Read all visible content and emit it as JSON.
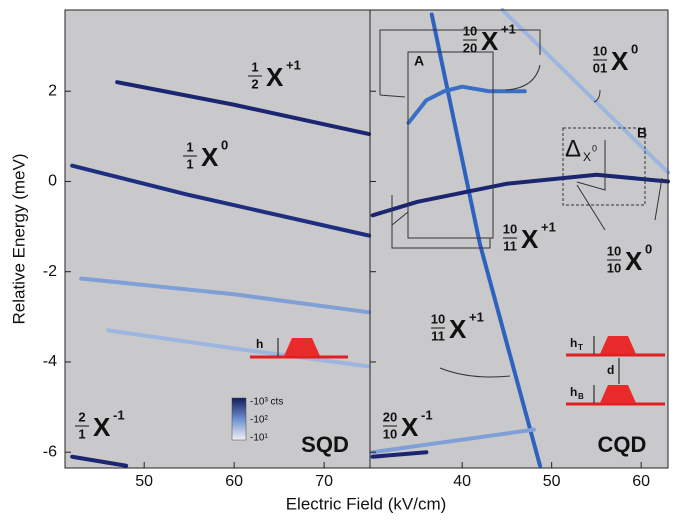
{
  "chart_data": [
    {
      "type": "line",
      "panel_label": "SQD",
      "xlabel": "Electric Field (kV/cm)",
      "ylabel": "Relative Energy (meV)",
      "xlim": [
        41.2,
        75.1
      ],
      "xticks": [
        50,
        60,
        70
      ],
      "ylim": [
        -6.35,
        3.8
      ],
      "yticks": [
        -6,
        -4,
        -2,
        0,
        2
      ],
      "series": [
        {
          "color": "#1b2570",
          "x": [
            47,
            60,
            75
          ],
          "values": [
            2.2,
            1.7,
            1.05
          ]
        },
        {
          "color": "#1f2f80",
          "x": [
            42,
            55,
            75
          ],
          "values": [
            0.35,
            -0.3,
            -1.2
          ]
        },
        {
          "color": "#7f9fd6",
          "x": [
            43,
            60,
            75
          ],
          "values": [
            -2.15,
            -2.5,
            -2.9
          ]
        },
        {
          "color": "#9db6e0",
          "x": [
            46,
            60,
            75
          ],
          "values": [
            -3.3,
            -3.7,
            -4.1
          ]
        },
        {
          "color": "#1b2570",
          "x": [
            42,
            48
          ],
          "values": [
            -6.1,
            -6.3
          ]
        }
      ],
      "annotations": [
        {
          "top": "1",
          "bottom": "2",
          "text": "X",
          "sup": "+1"
        },
        {
          "top": "1",
          "bottom": "1",
          "text": "X",
          "sup": "0"
        },
        {
          "top": "2",
          "bottom": "1",
          "text": "X",
          "sup": "-1"
        }
      ],
      "colorbar": [
        "-10³ cts",
        "-10²",
        "-10¹"
      ],
      "inset_labels": [
        "h"
      ]
    },
    {
      "type": "line",
      "panel_label": "CQD",
      "xlim": [
        29.7,
        63.0
      ],
      "xticks": [
        40,
        50,
        60
      ],
      "ylim": [
        -6.35,
        3.8
      ],
      "yticks": [
        -6,
        -4,
        -2,
        0,
        2
      ],
      "series": [
        {
          "color": "#2f62bf",
          "x": [
            36.6,
            42,
            48.7
          ],
          "values": [
            3.7,
            -1.4,
            -6.3
          ]
        },
        {
          "color": "#1b2570",
          "x": [
            30,
            35,
            45,
            55,
            63
          ],
          "values": [
            -0.75,
            -0.45,
            -0.05,
            0.15,
            0.0
          ]
        },
        {
          "color": "#3a6fc4",
          "x": [
            34,
            36,
            38,
            40,
            43,
            47
          ],
          "values": [
            1.3,
            1.8,
            2.0,
            2.1,
            2.0,
            2.0
          ]
        },
        {
          "color": "#9db6e0",
          "x": [
            44.5,
            63
          ],
          "values": [
            3.8,
            0.2
          ]
        },
        {
          "color": "#7f9fd6",
          "x": [
            30,
            48
          ],
          "values": [
            -6.0,
            -5.5
          ]
        },
        {
          "color": "#1b2570",
          "x": [
            30,
            36
          ],
          "values": [
            -6.1,
            -6.0
          ]
        }
      ],
      "annotations": [
        {
          "top": "10",
          "bottom": "20",
          "text": "X",
          "sup": "+1"
        },
        {
          "top": "10",
          "bottom": "01",
          "text": "X",
          "sup": "0"
        },
        {
          "top": "10",
          "bottom": "11",
          "text": "X",
          "sup": "+1"
        },
        {
          "top": "10",
          "bottom": "10",
          "text": "X",
          "sup": "0"
        },
        {
          "top": "10",
          "bottom": "11",
          "text": "X",
          "sup": "+1"
        },
        {
          "top": "20",
          "bottom": "10",
          "text": "X",
          "sup": "-1"
        }
      ],
      "box_labels": [
        "A",
        "B"
      ],
      "delta": {
        "text": "Δ",
        "sub": "X",
        "sup": "0"
      },
      "inset_labels": [
        {
          "text": "h",
          "sub": "T"
        },
        "d",
        {
          "text": "h",
          "sub": "B"
        }
      ]
    }
  ]
}
